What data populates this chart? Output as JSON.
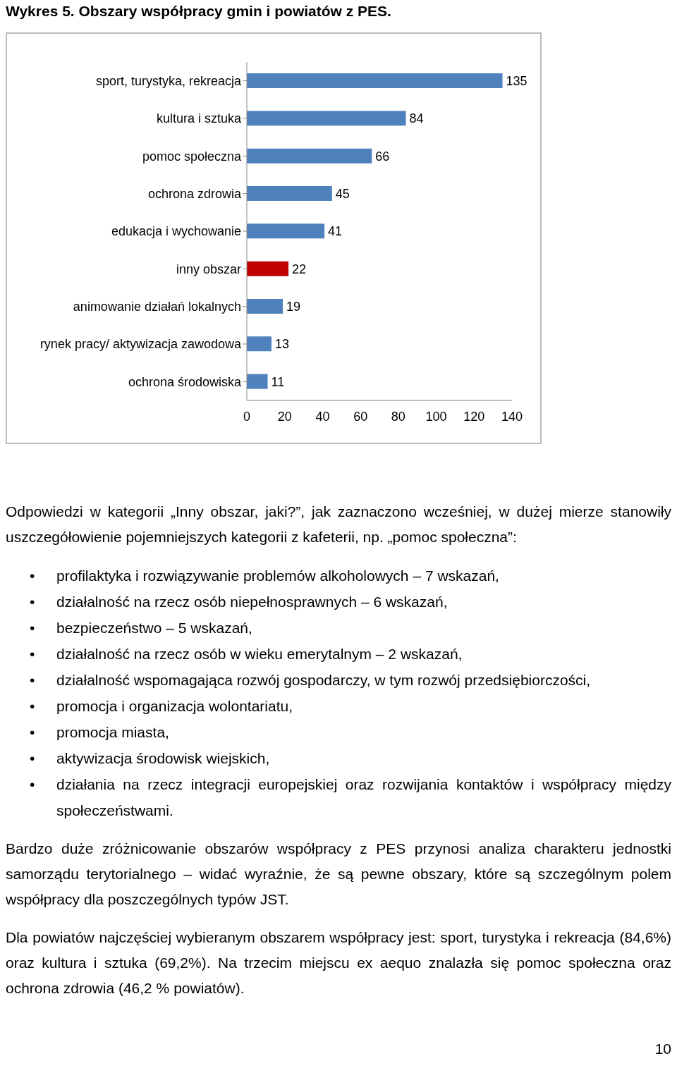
{
  "chart_data": {
    "type": "bar",
    "orientation": "horizontal",
    "title": "Wykres 5. Obszary współpracy gmin i powiatów z PES.",
    "categories": [
      "sport, turystyka, rekreacja",
      "kultura i sztuka",
      "pomoc społeczna",
      "ochrona zdrowia",
      "edukacja i wychowanie",
      "inny obszar",
      "animowanie działań lokalnych",
      "rynek pracy/ aktywizacja zawodowa",
      "ochrona środowiska"
    ],
    "values": [
      135,
      84,
      66,
      45,
      41,
      22,
      19,
      13,
      11
    ],
    "colors": [
      "#4f81bd",
      "#4f81bd",
      "#4f81bd",
      "#4f81bd",
      "#4f81bd",
      "#c00000",
      "#4f81bd",
      "#4f81bd",
      "#4f81bd"
    ],
    "xlim": [
      0,
      140
    ],
    "xticks": [
      0,
      20,
      40,
      60,
      80,
      100,
      120,
      140
    ],
    "grid": false,
    "legend": false,
    "data_labels": true,
    "annotations": [
      "Odpowiedzi w kategorii „Inny obszar, jaki?”, jak zaznaczono wcześniej, w dużej mierze stanowiły uszczegółowienie pojemniejszych kategorii z kafeterii, np. „pomoc społeczna”:",
      "• profilaktyka i rozwiązywanie problemów alkoholowych – 7 wskazań,",
      "• działalność na rzecz osób niepełnosprawnych – 6 wskazań,",
      "• bezpieczeństwo – 5 wskazań,",
      "• działalność na rzecz osób w wieku emerytalnym – 2 wskazań,",
      "• działalność wspomagająca rozwój gospodarczy, w tym rozwój przedsiębiorczości,",
      "• promocja i organizacja wolontariatu,",
      "• promocja miasta,",
      "• aktywizacja środowisk wiejskich,",
      "• działania na rzecz integracji europejskiej oraz rozwijania kontaktów i współpracy między społeczeństwami.",
      "Bardzo duże zróżnicowanie obszarów współpracy z PES przynosi analiza charakteru jednostki samorządu terytorialnego – widać wyraźnie, że są pewne obszary, które są szczególnym polem współpracy dla poszczególnych typów JST.",
      "Dla powiatów najczęściej wybieranym obszarem współpracy jest: sport, turystyka i rekreacja (84,6%) oraz kultura i sztuka (69,2%). Na trzecim miejscu ex aequo znalazła się pomoc społeczna oraz ochrona zdrowia (46,2 % powiatów).",
      "10"
    ]
  }
}
